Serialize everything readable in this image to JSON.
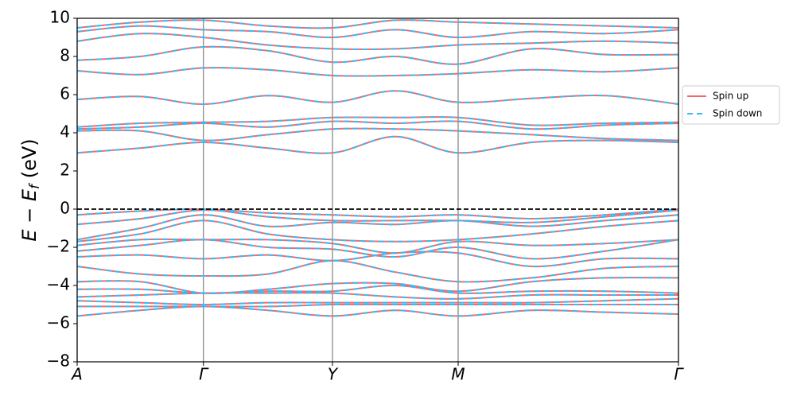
{
  "chart_data": {
    "type": "bandstructure",
    "y_label": {
      "main": "E − E",
      "sub": "f",
      "unit": " (eV)"
    },
    "x": [
      0,
      0.105,
      0.21,
      0.317,
      0.4246,
      0.529,
      0.6336,
      0.756,
      0.878,
      1
    ],
    "xlim": [
      0,
      1
    ],
    "xticks": [
      {
        "value": 0,
        "label": "A"
      },
      {
        "value": 0.21,
        "label": "Γ"
      },
      {
        "value": 0.4246,
        "label": "Y"
      },
      {
        "value": 0.6336,
        "label": "M"
      },
      {
        "value": 1,
        "label": "Γ"
      }
    ],
    "ylim": [
      -8,
      10
    ],
    "yticks": [
      {
        "value": -8,
        "label": "−8"
      },
      {
        "value": -6,
        "label": "−6"
      },
      {
        "value": -4,
        "label": "−4"
      },
      {
        "value": -2,
        "label": "−2"
      },
      0,
      2,
      4,
      6,
      8,
      10
    ],
    "fermi_level": 0,
    "legend": "outside right",
    "series": [
      {
        "name": "Spin up",
        "color": "#f46a6a",
        "dashed": false,
        "bands": [
          [
            2.95,
            3.2,
            3.5,
            3.2,
            2.95,
            3.8,
            2.95,
            3.5,
            3.6,
            3.5
          ],
          [
            4.1,
            4.1,
            3.6,
            3.9,
            4.2,
            4.2,
            4.1,
            3.9,
            3.7,
            3.6
          ],
          [
            4.2,
            4.3,
            4.5,
            4.3,
            4.6,
            4.5,
            4.6,
            4.2,
            4.4,
            4.5
          ],
          [
            4.3,
            4.5,
            4.55,
            4.6,
            4.8,
            4.8,
            4.8,
            4.4,
            4.5,
            4.55
          ],
          [
            5.75,
            5.9,
            5.5,
            5.95,
            5.6,
            6.2,
            5.6,
            5.8,
            5.95,
            5.5
          ],
          [
            7.25,
            7.05,
            7.4,
            7.3,
            7.0,
            7.0,
            7.1,
            7.3,
            7.2,
            7.4
          ],
          [
            7.8,
            8.0,
            8.5,
            8.3,
            7.7,
            8.0,
            7.6,
            8.4,
            8.1,
            8.1
          ],
          [
            8.8,
            9.2,
            9.0,
            8.6,
            8.4,
            8.4,
            8.6,
            8.7,
            8.8,
            8.7
          ],
          [
            9.3,
            9.6,
            9.4,
            9.3,
            9.0,
            9.4,
            9.0,
            9.3,
            9.2,
            9.4
          ],
          [
            9.5,
            9.8,
            9.9,
            9.6,
            9.5,
            9.9,
            9.8,
            9.7,
            9.6,
            9.5
          ],
          [
            -0.3,
            -0.1,
            0,
            -0.2,
            -0.3,
            -0.4,
            -0.3,
            -0.5,
            -0.3,
            0
          ],
          [
            -0.8,
            -0.5,
            -0.05,
            -0.4,
            -0.6,
            -0.6,
            -0.6,
            -0.7,
            -0.4,
            -0.05
          ],
          [
            -1.6,
            -1.0,
            -0.3,
            -0.9,
            -0.7,
            -0.8,
            -0.6,
            -0.9,
            -0.6,
            -0.3
          ],
          [
            -1.7,
            -1.3,
            -0.6,
            -1.3,
            -1.6,
            -1.7,
            -1.6,
            -1.3,
            -0.9,
            -0.6
          ],
          [
            -1.9,
            -1.6,
            -1.6,
            -1.6,
            -1.8,
            -2.3,
            -1.7,
            -1.9,
            -1.8,
            -1.6
          ],
          [
            -2.2,
            -1.9,
            -1.6,
            -2.0,
            -2.1,
            -2.5,
            -2.0,
            -2.6,
            -2.2,
            -1.6
          ],
          [
            -2.5,
            -2.4,
            -2.6,
            -2.4,
            -2.7,
            -2.3,
            -2.3,
            -3.0,
            -2.6,
            -2.6
          ],
          [
            -3.0,
            -3.4,
            -3.5,
            -3.4,
            -2.7,
            -3.3,
            -3.8,
            -3.6,
            -3.1,
            -3.0
          ],
          [
            -3.8,
            -3.8,
            -4.4,
            -4.2,
            -3.9,
            -3.9,
            -4.3,
            -3.8,
            -3.6,
            -3.6
          ],
          [
            -4.2,
            -4.2,
            -4.4,
            -4.3,
            -4.3,
            -4.0,
            -4.4,
            -4.3,
            -4.3,
            -4.4
          ],
          [
            -4.6,
            -4.5,
            -4.4,
            -4.4,
            -4.4,
            -4.6,
            -4.7,
            -4.5,
            -4.5,
            -4.5
          ],
          [
            -4.8,
            -4.9,
            -5.0,
            -4.9,
            -4.9,
            -4.9,
            -4.9,
            -4.9,
            -4.8,
            -4.7
          ],
          [
            -5.1,
            -5.1,
            -5.1,
            -5.1,
            -5.0,
            -5.0,
            -5.0,
            -5.0,
            -5.0,
            -5.0
          ],
          [
            -5.6,
            -5.3,
            -5.1,
            -5.3,
            -5.6,
            -5.3,
            -5.6,
            -5.3,
            -5.4,
            -5.5
          ]
        ]
      },
      {
        "name": "Spin down",
        "color": "#3fb8f2",
        "dashed": true,
        "bands": [
          [
            2.95,
            3.2,
            3.5,
            3.2,
            2.95,
            3.8,
            2.95,
            3.5,
            3.6,
            3.5
          ],
          [
            4.1,
            4.1,
            3.6,
            3.9,
            4.2,
            4.2,
            4.1,
            3.9,
            3.7,
            3.6
          ],
          [
            4.2,
            4.3,
            4.5,
            4.3,
            4.6,
            4.5,
            4.6,
            4.2,
            4.4,
            4.5
          ],
          [
            4.3,
            4.5,
            4.55,
            4.6,
            4.8,
            4.8,
            4.8,
            4.4,
            4.5,
            4.55
          ],
          [
            5.75,
            5.9,
            5.5,
            5.95,
            5.6,
            6.2,
            5.6,
            5.8,
            5.95,
            5.5
          ],
          [
            7.25,
            7.05,
            7.4,
            7.3,
            7.0,
            7.0,
            7.1,
            7.3,
            7.2,
            7.4
          ],
          [
            7.8,
            8.0,
            8.5,
            8.3,
            7.7,
            8.0,
            7.6,
            8.4,
            8.1,
            8.1
          ],
          [
            8.8,
            9.2,
            9.0,
            8.6,
            8.4,
            8.4,
            8.6,
            8.7,
            8.8,
            8.7
          ],
          [
            9.3,
            9.6,
            9.4,
            9.3,
            9.0,
            9.4,
            9.0,
            9.3,
            9.2,
            9.4
          ],
          [
            9.5,
            9.8,
            9.9,
            9.6,
            9.5,
            9.9,
            9.8,
            9.7,
            9.6,
            9.5
          ],
          [
            -0.3,
            -0.1,
            0,
            -0.2,
            -0.3,
            -0.4,
            -0.3,
            -0.5,
            -0.3,
            0
          ],
          [
            -0.8,
            -0.5,
            -0.05,
            -0.4,
            -0.6,
            -0.6,
            -0.6,
            -0.7,
            -0.4,
            -0.05
          ],
          [
            -1.6,
            -1.0,
            -0.3,
            -0.9,
            -0.7,
            -0.8,
            -0.6,
            -0.9,
            -0.6,
            -0.3
          ],
          [
            -1.7,
            -1.3,
            -0.6,
            -1.3,
            -1.6,
            -1.7,
            -1.6,
            -1.3,
            -0.9,
            -0.6
          ],
          [
            -1.9,
            -1.6,
            -1.6,
            -1.6,
            -1.8,
            -2.3,
            -1.7,
            -1.9,
            -1.8,
            -1.6
          ],
          [
            -2.2,
            -1.9,
            -1.6,
            -2.0,
            -2.1,
            -2.5,
            -2.0,
            -2.6,
            -2.2,
            -1.6
          ],
          [
            -2.5,
            -2.4,
            -2.6,
            -2.4,
            -2.7,
            -2.3,
            -2.3,
            -3.0,
            -2.6,
            -2.6
          ],
          [
            -3.0,
            -3.4,
            -3.5,
            -3.4,
            -2.7,
            -3.3,
            -3.8,
            -3.6,
            -3.1,
            -3.0
          ],
          [
            -3.8,
            -3.8,
            -4.4,
            -4.2,
            -3.9,
            -3.9,
            -4.3,
            -3.8,
            -3.6,
            -3.6
          ],
          [
            -4.2,
            -4.2,
            -4.4,
            -4.3,
            -4.3,
            -4.0,
            -4.4,
            -4.3,
            -4.3,
            -4.4
          ],
          [
            -4.6,
            -4.5,
            -4.4,
            -4.4,
            -4.4,
            -4.6,
            -4.7,
            -4.5,
            -4.5,
            -4.5
          ],
          [
            -4.8,
            -4.9,
            -5.0,
            -4.9,
            -4.9,
            -4.9,
            -4.9,
            -4.9,
            -4.8,
            -4.7
          ],
          [
            -5.1,
            -5.1,
            -5.1,
            -5.1,
            -5.0,
            -5.0,
            -5.0,
            -5.0,
            -5.0,
            -5.0
          ],
          [
            -5.6,
            -5.3,
            -5.1,
            -5.3,
            -5.6,
            -5.3,
            -5.6,
            -5.3,
            -5.4,
            -5.5
          ]
        ]
      }
    ]
  }
}
